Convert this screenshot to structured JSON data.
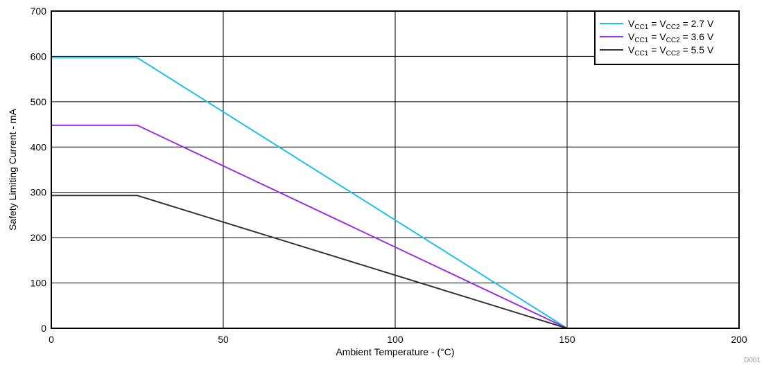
{
  "chart_data": {
    "type": "line",
    "xlabel": "Ambient Temperature - (°C)",
    "ylabel": "Safety Limiting Current - mA",
    "xlim": [
      0,
      200
    ],
    "ylim": [
      0,
      700
    ],
    "x_ticks": [
      0,
      50,
      100,
      150,
      200
    ],
    "y_ticks": [
      0,
      100,
      200,
      300,
      400,
      500,
      600,
      700
    ],
    "grid": true,
    "legend_position": "top-right",
    "series": [
      {
        "name": "VCC1 = VCC2 = 2.7 V",
        "label_parts": {
          "v1": "V",
          "s1": "CC1",
          "mid": " = V",
          "s2": "CC2",
          "end": " = 2.7 V"
        },
        "color": "#1ec0ea",
        "x": [
          0,
          25,
          150
        ],
        "y": [
          597,
          597,
          0
        ]
      },
      {
        "name": "VCC1 = VCC2 = 3.6 V",
        "label_parts": {
          "v1": "V",
          "s1": "CC1",
          "mid": " = V",
          "s2": "CC2",
          "end": " = 3.6 V"
        },
        "color": "#9b30e0",
        "x": [
          0,
          25,
          150
        ],
        "y": [
          448,
          448,
          0
        ]
      },
      {
        "name": "VCC1 = VCC2 = 5.5 V",
        "label_parts": {
          "v1": "V",
          "s1": "CC1",
          "mid": " = V",
          "s2": "CC2",
          "end": " = 5.5 V"
        },
        "color": "#333333",
        "x": [
          0,
          25,
          150
        ],
        "y": [
          293,
          293,
          0
        ]
      }
    ],
    "footnote": "D001"
  }
}
